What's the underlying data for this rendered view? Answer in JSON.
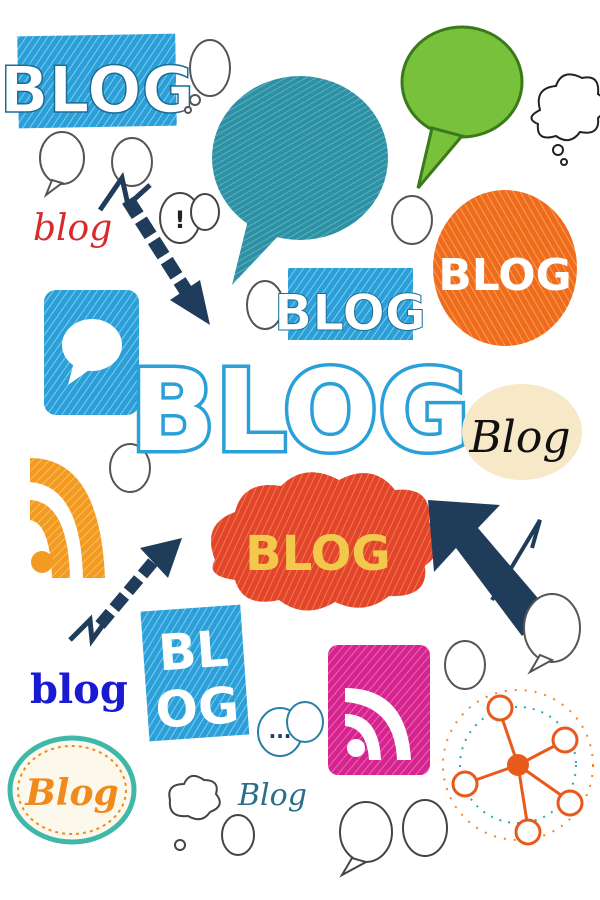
{
  "collage": {
    "words": {
      "top_left": "BLOG",
      "red_script": "blog",
      "center_small": "BLOG",
      "center_big": "BLOG",
      "orange_circle": "BLOG",
      "beige_script": "Blog",
      "red_cloud": "BLOG",
      "stack_top": "BL",
      "stack_bottom": "OG",
      "blue_bold": "blog",
      "teal_script": "Blog",
      "oval_badge": "Blog"
    },
    "speech_small": "!",
    "speech_dots": "...",
    "colors": {
      "blue": "#2a9fd8",
      "teal": "#2e8fa0",
      "green": "#78c23b",
      "orange": "#f08a1c",
      "red": "#e2452b",
      "navy": "#1f3d5a",
      "magenta": "#d6248f",
      "yellow": "#f2c94c",
      "beige": "#f7e9c7"
    },
    "icons": [
      "rss-icon",
      "speech-bubble-icon",
      "arrow-icon",
      "network-icon",
      "cloud-icon"
    ]
  }
}
